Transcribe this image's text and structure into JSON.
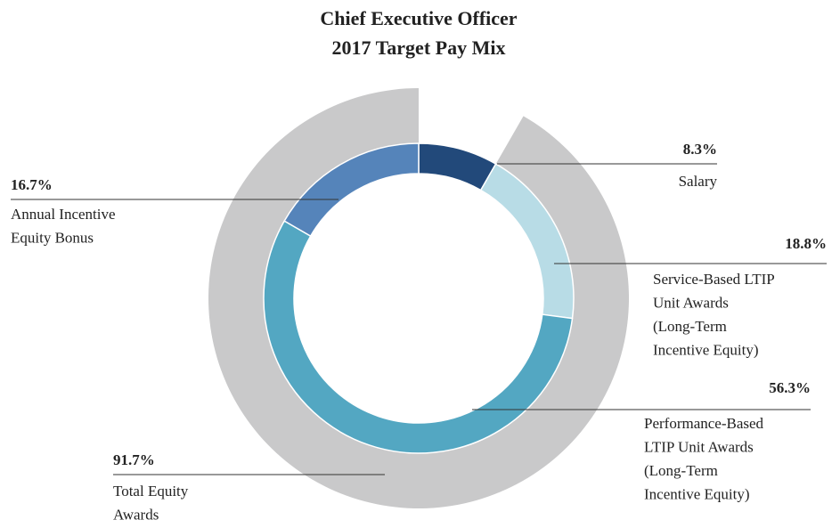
{
  "chart_data": {
    "type": "donut",
    "title": [
      "Chief Executive Officer",
      "2017 Target Pay Mix"
    ],
    "categories": [
      [
        "Salary"
      ],
      [
        "Service-Based LTIP",
        "Unit Awards",
        "(Long-Term",
        "Incentive Equity)"
      ],
      [
        "Performance-Based",
        "LTIP Unit Awards",
        "(Long-Term",
        "Incentive Equity)"
      ],
      [
        "Annual Incentive",
        "Equity Bonus"
      ]
    ],
    "values": [
      8.3,
      18.8,
      56.3,
      16.7
    ],
    "value_labels": [
      "8.3%",
      "18.8%",
      "56.3%",
      "16.7%"
    ],
    "colors": [
      "#22497a",
      "#b8dce6",
      "#53a7c2",
      "#5584ba"
    ],
    "outer": {
      "name": [
        "Total Equity",
        "Awards"
      ],
      "value": 91.7,
      "value_label": "91.7%",
      "color": "#c9c9ca"
    }
  }
}
